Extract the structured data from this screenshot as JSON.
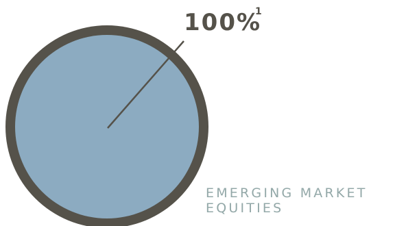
{
  "chart_data": {
    "type": "pie",
    "slices": [
      {
        "label": "EMERGING MARKET\nEQUITIES",
        "value": 100,
        "value_label": "100%",
        "footnote": "1",
        "color": "#8cabc1"
      }
    ],
    "colors": {
      "ring": "#55524a",
      "leader_line": "#55524a",
      "label_text": "#55524a",
      "category_text": "#93a8a8"
    }
  }
}
